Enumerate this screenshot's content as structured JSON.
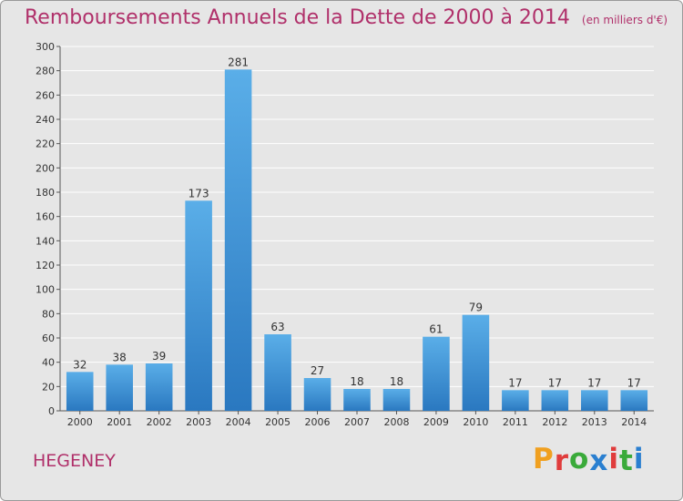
{
  "chart_data": {
    "type": "bar",
    "title": "Remboursements Annuels de la Dette de 2000 à 2014",
    "subtitle": "(en milliers d'€)",
    "categories": [
      "2000",
      "2001",
      "2002",
      "2003",
      "2004",
      "2005",
      "2006",
      "2007",
      "2008",
      "2009",
      "2010",
      "2011",
      "2012",
      "2013",
      "2014"
    ],
    "values": [
      32,
      38,
      39,
      173,
      281,
      63,
      27,
      18,
      18,
      61,
      79,
      17,
      17,
      17,
      17
    ],
    "ylim": [
      0,
      300
    ],
    "yticks": [
      0,
      20,
      40,
      60,
      80,
      100,
      120,
      140,
      160,
      180,
      200,
      220,
      240,
      260,
      280,
      300
    ],
    "xlabel": "",
    "ylabel": "",
    "grid": true,
    "bar_color": "#3a8fd6",
    "title_color": "#b0306a"
  },
  "footer": {
    "commune": "HEGENEY",
    "logo": "Proxiti"
  },
  "logo_colors": [
    "#f0a020",
    "#e03c3c",
    "#3aaa3a",
    "#2a7fd0",
    "#e03c3c",
    "#3aaa3a",
    "#2a7fd0"
  ]
}
